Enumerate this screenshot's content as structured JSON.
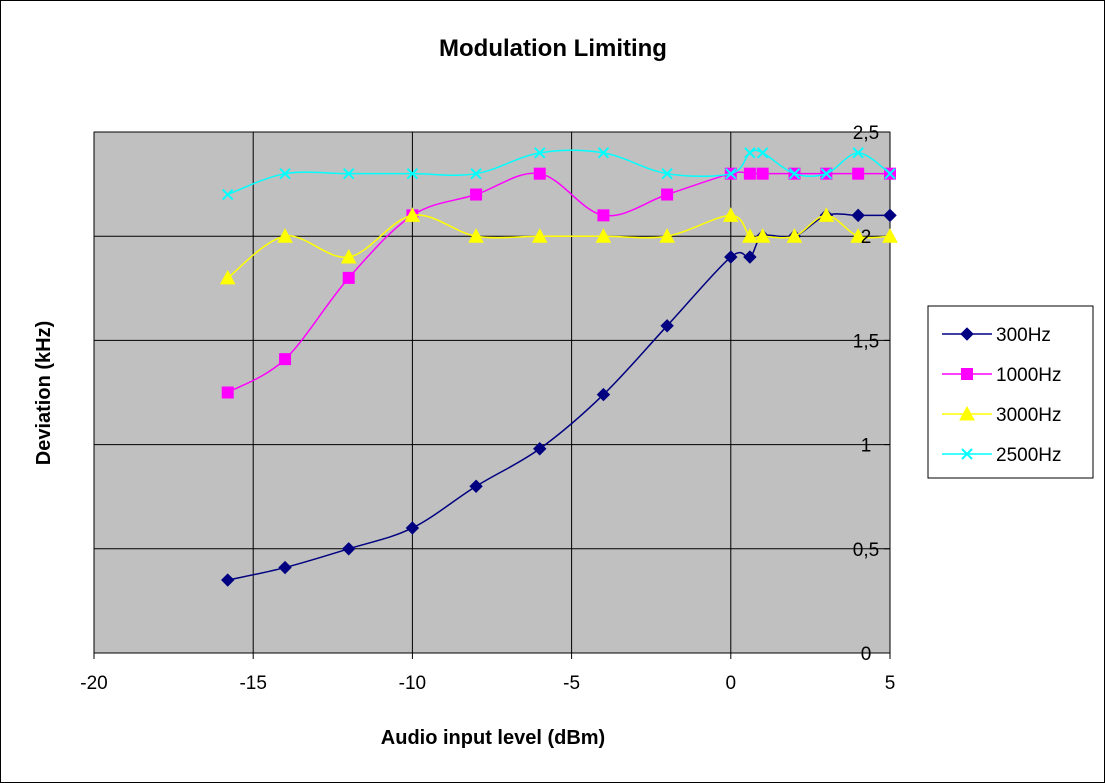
{
  "chart_data": {
    "type": "line",
    "title": "Modulation Limiting",
    "xlabel": "Audio input level (dBm)",
    "ylabel": "Deviation (kHz)",
    "xlim": [
      -20,
      5
    ],
    "ylim": [
      0,
      2.5
    ],
    "x_ticks": [
      -20,
      -15,
      -10,
      -5,
      0,
      5
    ],
    "x_tick_labels": [
      "-20",
      "-15",
      "-10",
      "-5",
      "0",
      "5"
    ],
    "y_ticks": [
      0,
      0.5,
      1,
      1.5,
      2,
      2.5
    ],
    "y_tick_labels": [
      "0",
      "0,5",
      "1",
      "1,5",
      "2",
      "2,5"
    ],
    "grid": true,
    "plot_background": "#c0c0c0",
    "legend_position": "right",
    "series": [
      {
        "name": "300Hz",
        "color": "#000080",
        "marker": "diamond",
        "points": [
          [
            -15.8,
            0.35
          ],
          [
            -14,
            0.41
          ],
          [
            -12,
            0.5
          ],
          [
            -10,
            0.6
          ],
          [
            -8,
            0.8
          ],
          [
            -6,
            0.98
          ],
          [
            -4,
            1.24
          ],
          [
            -2,
            1.57
          ],
          [
            0,
            1.9
          ],
          [
            0.6,
            1.9
          ],
          [
            1,
            2.0
          ],
          [
            2,
            2.0
          ],
          [
            3,
            2.1
          ],
          [
            4,
            2.1
          ],
          [
            5,
            2.1
          ]
        ]
      },
      {
        "name": "1000Hz",
        "color": "#ff00ff",
        "marker": "square",
        "points": [
          [
            -15.8,
            1.25
          ],
          [
            -14,
            1.41
          ],
          [
            -12,
            1.8
          ],
          [
            -10,
            2.1
          ],
          [
            -8,
            2.2
          ],
          [
            -6,
            2.3
          ],
          [
            -4,
            2.1
          ],
          [
            -2,
            2.2
          ],
          [
            0,
            2.3
          ],
          [
            0.6,
            2.3
          ],
          [
            1,
            2.3
          ],
          [
            2,
            2.3
          ],
          [
            3,
            2.3
          ],
          [
            4,
            2.3
          ],
          [
            5,
            2.3
          ]
        ]
      },
      {
        "name": "3000Hz",
        "color": "#ffff00",
        "marker": "triangle",
        "points": [
          [
            -15.8,
            1.8
          ],
          [
            -14,
            2.0
          ],
          [
            -12,
            1.9
          ],
          [
            -10,
            2.1
          ],
          [
            -8,
            2.0
          ],
          [
            -6,
            2.0
          ],
          [
            -4,
            2.0
          ],
          [
            -2,
            2.0
          ],
          [
            0,
            2.1
          ],
          [
            0.6,
            2.0
          ],
          [
            1,
            2.0
          ],
          [
            2,
            2.0
          ],
          [
            3,
            2.1
          ],
          [
            4,
            2.0
          ],
          [
            5,
            2.0
          ]
        ]
      },
      {
        "name": "2500Hz",
        "color": "#00ffff",
        "marker": "x",
        "points": [
          [
            -15.8,
            2.2
          ],
          [
            -14,
            2.3
          ],
          [
            -12,
            2.3
          ],
          [
            -10,
            2.3
          ],
          [
            -8,
            2.3
          ],
          [
            -6,
            2.4
          ],
          [
            -4,
            2.4
          ],
          [
            -2,
            2.3
          ],
          [
            0,
            2.3
          ],
          [
            0.6,
            2.4
          ],
          [
            1,
            2.4
          ],
          [
            2,
            2.3
          ],
          [
            3,
            2.3
          ],
          [
            4,
            2.4
          ],
          [
            5,
            2.3
          ]
        ]
      }
    ]
  }
}
